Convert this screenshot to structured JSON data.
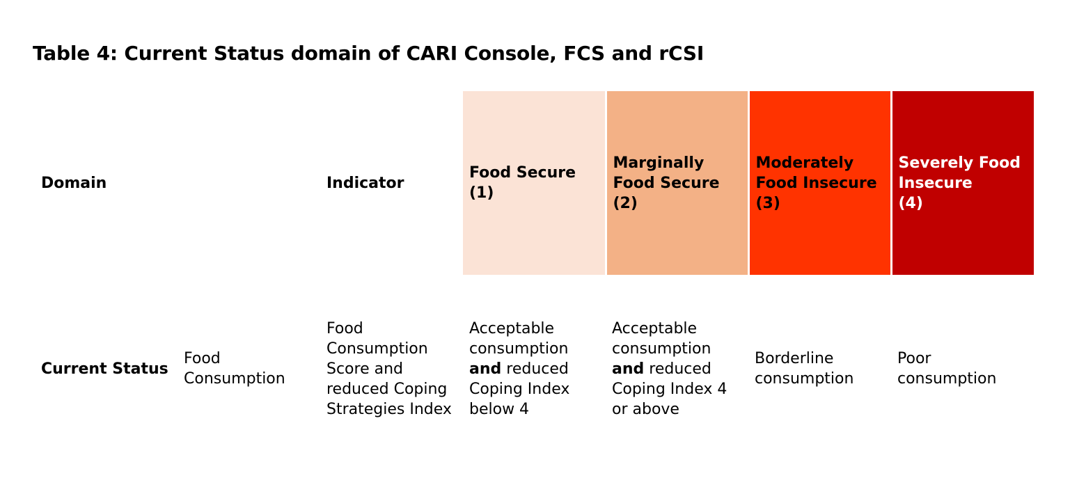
{
  "title": "Table 4: Current Status domain of CARI Console, FCS and rCSI",
  "colors": {
    "food_secure": "#fbe3d6",
    "marginally_food_secure": "#f3b186",
    "moderately_food_insecure": "#ff3300",
    "severely_food_insecure": "#c00000"
  },
  "header": {
    "domain": "Domain",
    "indicator": "Indicator",
    "categories": [
      {
        "name": "Food Secure",
        "code": "(1)"
      },
      {
        "name": "Marginally Food Secure",
        "code": "(2)"
      },
      {
        "name": "Moderately Food Insecure",
        "code": "(3)"
      },
      {
        "name": "Severely Food Insecure",
        "code": "(4)"
      }
    ]
  },
  "row": {
    "domain": "Current Status",
    "subdomain": "Food Consumption",
    "indicator": "Food Consumption Score and reduced Coping Strategies Index",
    "cat1": {
      "pre": "Acceptable consumption",
      "bold": "and",
      "post": "reduced Coping Index below 4"
    },
    "cat2": {
      "pre": "Acceptable consumption",
      "bold": "and",
      "post": "reduced Coping Index 4 or above"
    },
    "cat3": "Borderline consumption",
    "cat4": "Poor consumption"
  }
}
